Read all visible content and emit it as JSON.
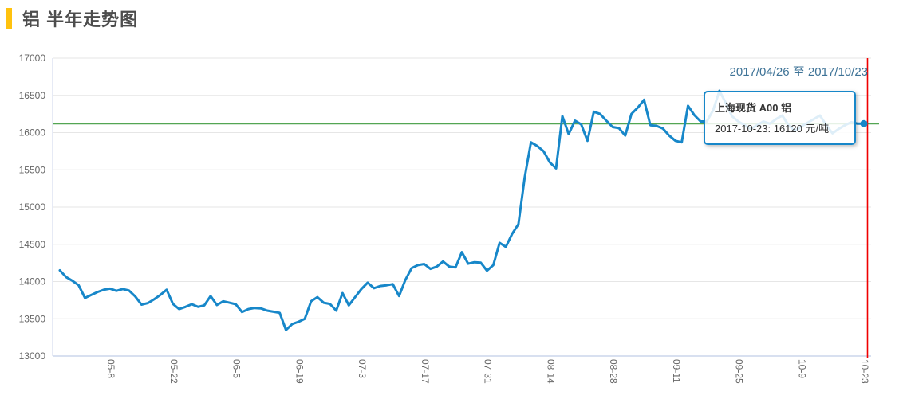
{
  "header": {
    "title": "铝 半年走势图",
    "accent_color": "#ffc20e"
  },
  "chart": {
    "range_label": "2017/04/26 至 2017/10/23",
    "tooltip": {
      "title": "上海现货 A00 铝",
      "body": "2017-10-23: 16120 元/吨"
    },
    "colors": {
      "line": "#1787c9",
      "plotline": "#53a653",
      "crosshair": "#f00000",
      "grid": "#e6e6e6",
      "axis": "#ccd6eb",
      "tick_label": "#666666",
      "range_label": "#3e7397"
    }
  },
  "chart_data": {
    "type": "line",
    "title": "铝 半年走势图",
    "xlabel": "",
    "ylabel": "",
    "ylim": [
      13000,
      17000
    ],
    "y_ticks": [
      13000,
      13500,
      14000,
      14500,
      15000,
      15500,
      16000,
      16500,
      17000
    ],
    "grid": true,
    "legend_position": "none",
    "x_tick_labels": [
      "05-8",
      "05-22",
      "06-5",
      "06-19",
      "07-3",
      "07-17",
      "07-31",
      "08-14",
      "08-28",
      "09-11",
      "09-25",
      "10-9",
      "10-23"
    ],
    "x_tick_indices": [
      8,
      18,
      28,
      38,
      48,
      58,
      68,
      78,
      88,
      98,
      108,
      118,
      128
    ],
    "plotline_value": 16120,
    "crosshair_index": 128,
    "last_point": {
      "date": "2017-10-23",
      "value": 16120,
      "unit": "元/吨"
    },
    "series": [
      {
        "name": "上海现货 A00 铝",
        "unit": "元/吨",
        "dates": [
          "04-26",
          "04-27",
          "04-28",
          "05-01",
          "05-02",
          "05-03",
          "05-04",
          "05-05",
          "05-08",
          "05-09",
          "05-10",
          "05-11",
          "05-12",
          "05-15",
          "05-16",
          "05-17",
          "05-18",
          "05-19",
          "05-22",
          "05-23",
          "05-24",
          "05-25",
          "05-26",
          "05-29",
          "05-30",
          "05-31",
          "06-01",
          "06-02",
          "06-05",
          "06-06",
          "06-07",
          "06-08",
          "06-09",
          "06-12",
          "06-13",
          "06-14",
          "06-15",
          "06-16",
          "06-19",
          "06-20",
          "06-21",
          "06-22",
          "06-23",
          "06-26",
          "06-27",
          "06-28",
          "06-29",
          "06-30",
          "07-03",
          "07-04",
          "07-05",
          "07-06",
          "07-07",
          "07-10",
          "07-11",
          "07-12",
          "07-13",
          "07-14",
          "07-17",
          "07-18",
          "07-19",
          "07-20",
          "07-21",
          "07-24",
          "07-25",
          "07-26",
          "07-27",
          "07-28",
          "07-31",
          "08-01",
          "08-02",
          "08-03",
          "08-04",
          "08-07",
          "08-08",
          "08-09",
          "08-10",
          "08-11",
          "08-14",
          "08-15",
          "08-16",
          "08-17",
          "08-18",
          "08-21",
          "08-22",
          "08-23",
          "08-24",
          "08-25",
          "08-28",
          "08-29",
          "08-30",
          "08-31",
          "09-01",
          "09-04",
          "09-05",
          "09-06",
          "09-07",
          "09-08",
          "09-11",
          "09-12",
          "09-13",
          "09-14",
          "09-15",
          "09-18",
          "09-19",
          "09-20",
          "09-21",
          "09-22",
          "09-25",
          "09-26",
          "09-27",
          "09-28",
          "09-29",
          "10-02",
          "10-03",
          "10-04",
          "10-05",
          "10-06",
          "10-09",
          "10-10",
          "10-11",
          "10-12",
          "10-13",
          "10-16",
          "10-17",
          "10-18",
          "10-19",
          "10-20",
          "10-23"
        ],
        "values": [
          14150,
          14060,
          14010,
          13950,
          13780,
          13820,
          13860,
          13890,
          13905,
          13875,
          13900,
          13880,
          13800,
          13690,
          13710,
          13760,
          13820,
          13890,
          13700,
          13630,
          13660,
          13695,
          13660,
          13680,
          13805,
          13685,
          13735,
          13715,
          13695,
          13590,
          13630,
          13645,
          13640,
          13610,
          13595,
          13580,
          13350,
          13430,
          13460,
          13500,
          13735,
          13790,
          13715,
          13700,
          13610,
          13845,
          13680,
          13790,
          13900,
          13985,
          13910,
          13940,
          13950,
          13965,
          13805,
          14020,
          14180,
          14220,
          14235,
          14170,
          14200,
          14270,
          14200,
          14190,
          14395,
          14240,
          14260,
          14255,
          14145,
          14220,
          14520,
          14465,
          14640,
          14770,
          15400,
          15870,
          15820,
          15750,
          15600,
          15520,
          16220,
          15980,
          16160,
          16110,
          15890,
          16280,
          16250,
          16160,
          16075,
          16060,
          15960,
          16250,
          16335,
          16440,
          16100,
          16090,
          16055,
          15960,
          15890,
          15870,
          16360,
          16235,
          16150,
          16150,
          16300,
          16560,
          16400,
          16220,
          16150,
          16100,
          16050,
          16100,
          16150,
          16120,
          16180,
          16230,
          16100,
          16020,
          16080,
          16130,
          16180,
          16230,
          16100,
          15990,
          16050,
          16100,
          16140,
          16120,
          16120
        ]
      }
    ]
  }
}
